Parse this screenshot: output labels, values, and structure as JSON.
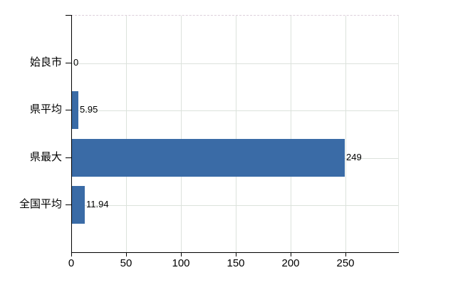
{
  "chart_data": {
    "type": "bar",
    "orientation": "horizontal",
    "title": "",
    "xlabel": "",
    "ylabel": "",
    "categories": [
      "姶良市",
      "県平均",
      "県最大",
      "全国平均"
    ],
    "values": [
      0,
      5.95,
      249,
      11.94
    ],
    "value_labels": [
      "0",
      "5.95",
      "249",
      "11.94"
    ],
    "x_ticks": [
      0,
      50,
      100,
      150,
      200,
      250
    ],
    "x_tick_labels": [
      "0",
      "50",
      "100",
      "150",
      "200",
      "250"
    ],
    "xlim": [
      0,
      298
    ],
    "grid": true,
    "legend": false,
    "colors": {
      "bar": "#3a6ba6",
      "gridline": "#dce2dc",
      "plot_top_border": "#dccfda",
      "plot_right_border": "#e4e8e4",
      "axis": "#000000",
      "text": "#000000",
      "background": "#ffffff"
    }
  }
}
